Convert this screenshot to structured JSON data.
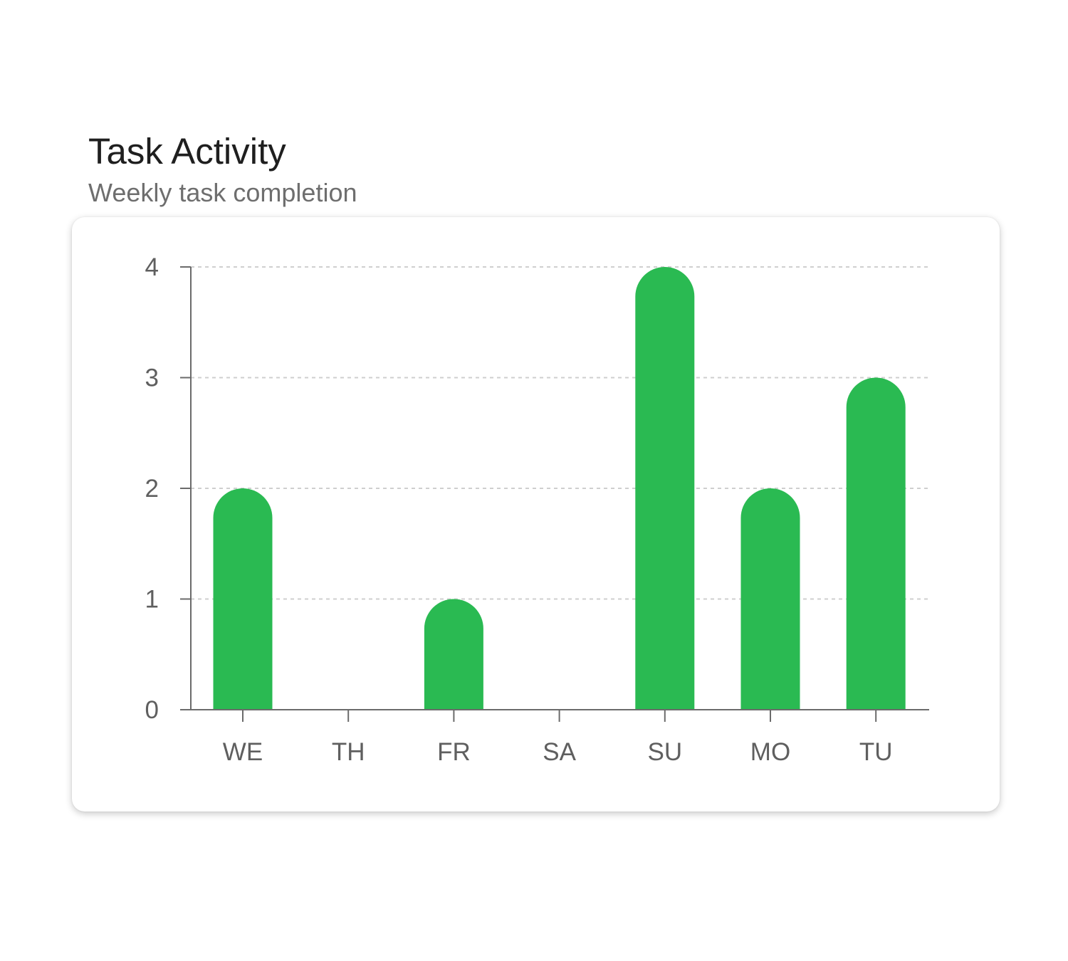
{
  "header": {
    "title": "Task Activity",
    "subtitle": "Weekly task completion"
  },
  "colors": {
    "bar": "#2aba52",
    "axis": "#6b6b6b",
    "grid": "#cfcfcf"
  },
  "chart_data": {
    "type": "bar",
    "title": "Task Activity",
    "subtitle": "Weekly task completion",
    "categories": [
      "WE",
      "TH",
      "FR",
      "SA",
      "SU",
      "MO",
      "TU"
    ],
    "values": [
      2,
      0,
      1,
      0,
      4,
      2,
      3
    ],
    "yticks": [
      0,
      1,
      2,
      3,
      4
    ],
    "ylim": [
      0,
      4
    ],
    "grid": true,
    "grid_style": "dashed horizontal",
    "legend": "none",
    "bar_shape": "rounded top"
  }
}
